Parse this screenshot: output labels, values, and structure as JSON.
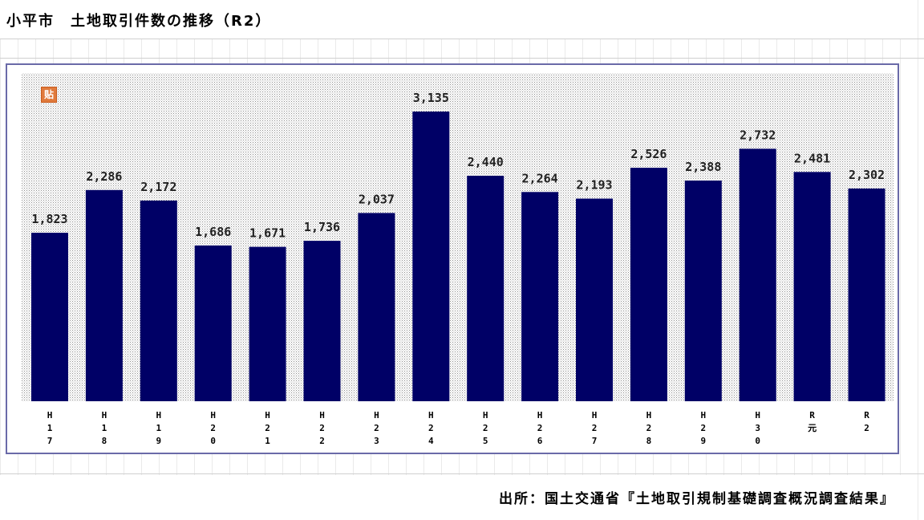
{
  "title": "小平市　土地取引件数の推移（R2）",
  "source": "出所：国土交通省『土地取引規制基礎調査概況調査結果』",
  "stamp_label": "贴",
  "colors": {
    "bar": "#000066",
    "frame": "#6a6aa8",
    "plot_dots": "#9a9a9a"
  },
  "chart_data": {
    "type": "bar",
    "title": "小平市　土地取引件数の推移（R2）",
    "xlabel": "",
    "ylabel": "",
    "ylim": [
      0,
      3135
    ],
    "grid": false,
    "legend": "none",
    "categories": [
      "H\n1\n7",
      "H\n1\n8",
      "H\n1\n9",
      "H\n2\n0",
      "H\n2\n1",
      "H\n2\n2",
      "H\n2\n3",
      "H\n2\n4",
      "H\n2\n5",
      "H\n2\n6",
      "H\n2\n7",
      "H\n2\n8",
      "H\n2\n9",
      "H\n3\n0",
      "R\n元",
      "R\n2"
    ],
    "values": [
      1823,
      2286,
      2172,
      1686,
      1671,
      1736,
      2037,
      3135,
      2440,
      2264,
      2193,
      2526,
      2388,
      2732,
      2481,
      2302
    ],
    "value_labels": [
      "1,823",
      "2,286",
      "2,172",
      "1,686",
      "1,671",
      "1,736",
      "2,037",
      "3,135",
      "2,440",
      "2,264",
      "2,193",
      "2,526",
      "2,388",
      "2,732",
      "2,481",
      "2,302"
    ]
  }
}
